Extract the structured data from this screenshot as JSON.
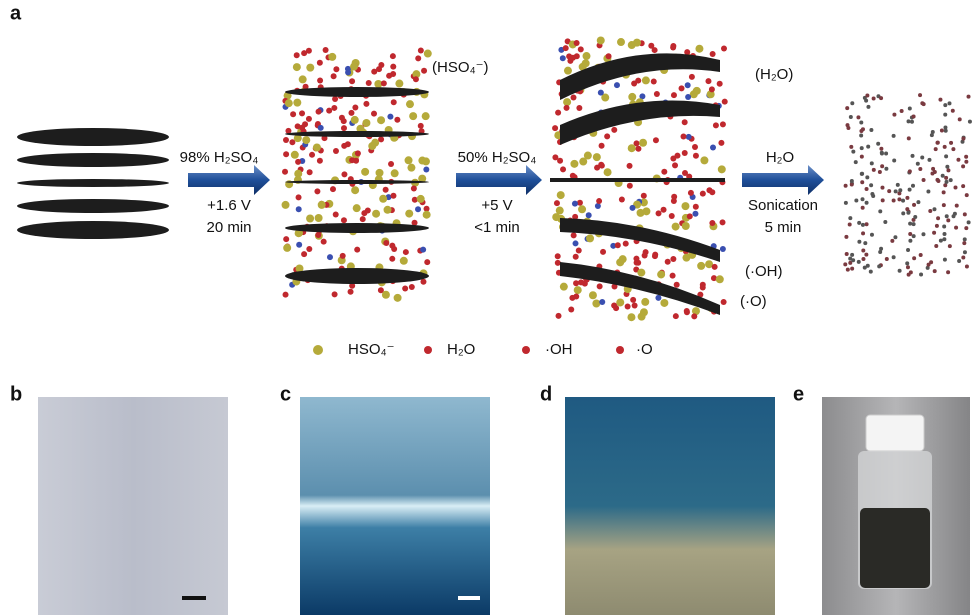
{
  "panel_a": {
    "label": "a",
    "steps": [
      {
        "reagent": "98% H₂SO₄",
        "voltage": "+1.6 V",
        "time": "20 min"
      },
      {
        "reagent": "50% H₂SO₄",
        "voltage": "+5 V",
        "time": "<1 min"
      },
      {
        "reagent": "H₂O",
        "process": "Sonication",
        "time": "5 min"
      }
    ],
    "annotations": [
      "(HSO₄⁻)",
      "(H₂O)",
      "(·OH)",
      "(·O)"
    ],
    "legend": [
      "HSO₄⁻",
      "H₂O",
      "·OH",
      "·O"
    ]
  },
  "panels": [
    "b",
    "c",
    "d",
    "e"
  ]
}
